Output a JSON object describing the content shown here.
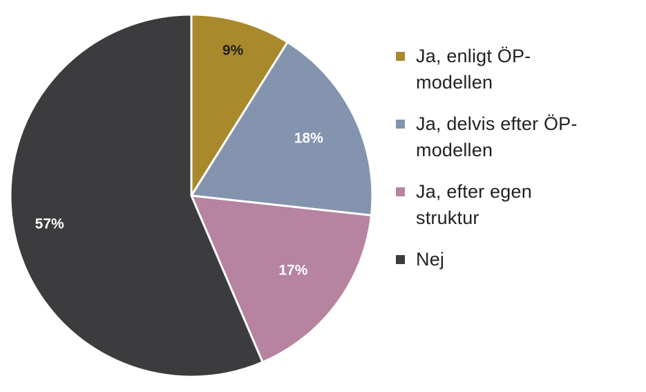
{
  "chart_data": {
    "type": "pie",
    "title": "",
    "categories": [
      "Ja, enligt ÖP-modellen",
      "Ja, delvis efter ÖP-modellen",
      "Ja, efter egen struktur",
      "Nej"
    ],
    "values": [
      9,
      18,
      17,
      57
    ],
    "data_labels": [
      "9%",
      "18%",
      "17%",
      "57%"
    ],
    "colors": [
      "#a8892c",
      "#8494ae",
      "#b683a0",
      "#3c3c3e"
    ],
    "legend_position": "right",
    "start_angle": "12 o'clock",
    "direction": "clockwise"
  },
  "legend": {
    "items": [
      {
        "label": "Ja, enligt ÖP-modellen"
      },
      {
        "label": "Ja, delvis efter ÖP-modellen"
      },
      {
        "label": "Ja, efter egen struktur"
      },
      {
        "label": "Nej"
      }
    ]
  }
}
